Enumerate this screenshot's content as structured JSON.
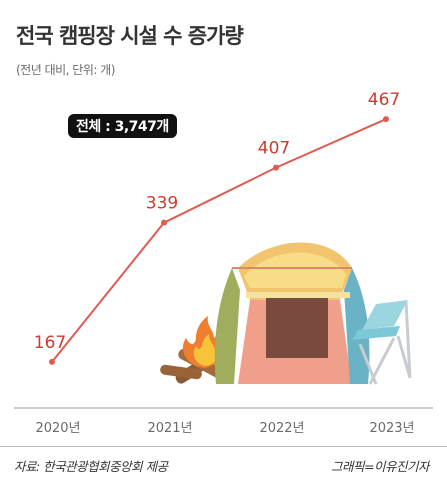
{
  "header": {
    "title": "전국 캠핑장 시설 수 증가량",
    "subtitle": "(전년 대비, 단위: 개)"
  },
  "badge": {
    "total": "전체 : 3,747개"
  },
  "footer": {
    "source": "자료: 한국관광협회중앙회 제공",
    "credit": "그래픽=이유진기자"
  },
  "colors": {
    "line": "#e05a4f",
    "value_label": "#cc3b2f",
    "axis": "#9a9a9a"
  },
  "chart_data": {
    "type": "line",
    "title": "전국 캠핑장 시설 수 증가량",
    "subtitle": "(전년 대비, 단위: 개)",
    "categories": [
      "2020년",
      "2021년",
      "2022년",
      "2023년"
    ],
    "values": [
      167,
      339,
      407,
      467
    ],
    "data_labels": [
      "167",
      "339",
      "407",
      "467"
    ],
    "ylim": [
      110,
      540
    ],
    "grid": false,
    "legend": "none",
    "annotation": "전체 : 3,747개",
    "decoration": "tent-and-campfire-illustration"
  }
}
